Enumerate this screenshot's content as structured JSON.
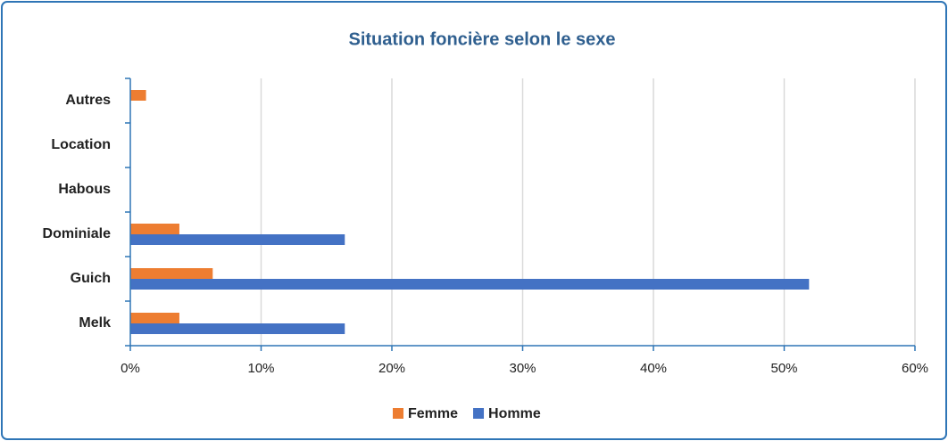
{
  "chart_data": {
    "type": "bar",
    "orientation": "horizontal",
    "title": "Situation foncière selon le sexe",
    "categories": [
      "Autres",
      "Location",
      "Habous",
      "Dominiale",
      "Guich",
      "Melk"
    ],
    "series": [
      {
        "name": "Femme",
        "color": "#ed7d31",
        "values": [
          1.2,
          0,
          0,
          3.75,
          6.3,
          3.75
        ]
      },
      {
        "name": "Homme",
        "color": "#4472c4",
        "values": [
          0,
          0,
          0,
          16.4,
          51.9,
          16.4
        ]
      }
    ],
    "xlim": [
      0,
      60
    ],
    "xticks": [
      {
        "value": 0,
        "label": "0%"
      },
      {
        "value": 10,
        "label": "10%"
      },
      {
        "value": 20,
        "label": "20%"
      },
      {
        "value": 30,
        "label": "30%"
      },
      {
        "value": 40,
        "label": "40%"
      },
      {
        "value": 50,
        "label": "50%"
      },
      {
        "value": 60,
        "label": "60%"
      }
    ],
    "grid": true,
    "legend": "bottom"
  }
}
